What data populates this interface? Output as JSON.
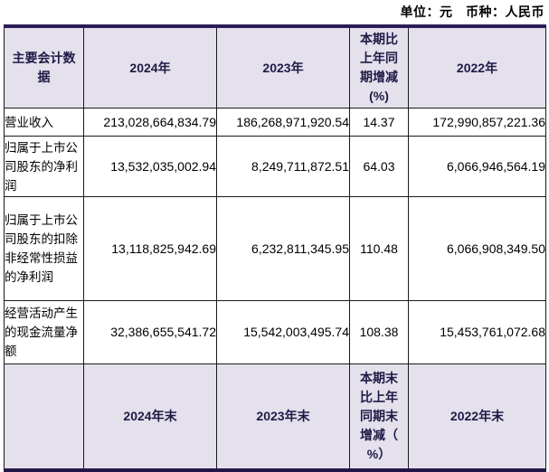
{
  "unit_note": "单位：元　币种：人民币",
  "colors": {
    "header_bg": "#E4E0EC",
    "header_text": "#201946",
    "outer_border": "#2B1C58",
    "cell_border": "#1a1a1a"
  },
  "table": {
    "header": [
      "主要会计数\n据",
      "2024年",
      "2023年",
      "本期比\n上年同\n期增减\n(%)",
      "2022年"
    ],
    "rows": [
      [
        "营业收入",
        "213,028,664,834.79",
        "186,268,971,920.54",
        "14.37",
        "172,990,857,221.36"
      ],
      [
        "归属于上市公司股东的净利润",
        "13,532,035,002.94",
        "8,249,711,872.51",
        "64.03",
        "6,066,946,564.19"
      ],
      [
        "归属于上市公司股东的扣除非经常性损益的净利润",
        "13,118,825,942.69",
        "6,232,811,345.95",
        "110.48",
        "6,066,908,349.50"
      ],
      [
        "经营活动产生的现金流量净额",
        "32,386,655,541.72",
        "15,542,003,495.74",
        "108.38",
        "15,453,761,072.68"
      ]
    ],
    "footer_header": [
      "",
      "2024年末",
      "2023年末",
      "本期末\n比上年\n同期末\n增减（\n%）",
      "2022年末"
    ]
  }
}
